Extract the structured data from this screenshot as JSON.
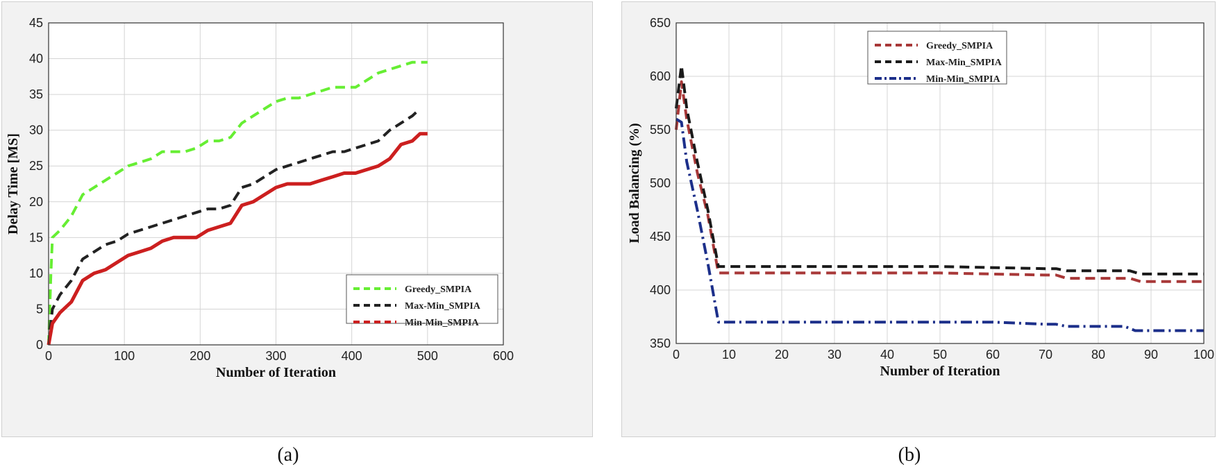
{
  "figure": {
    "captions": [
      "(a)",
      "(b)"
    ]
  },
  "chart_data": [
    {
      "type": "line",
      "title": "",
      "xlabel": "Number of Iteration",
      "ylabel": "Delay Time [MS]",
      "xlim": [
        0,
        600
      ],
      "ylim": [
        0,
        45
      ],
      "xticks": [
        0,
        100,
        200,
        300,
        400,
        500,
        600
      ],
      "yticks": [
        0,
        5,
        10,
        15,
        20,
        25,
        30,
        35,
        40,
        45
      ],
      "grid": true,
      "legend_position": "bottom-right",
      "series": [
        {
          "name": "Greedy_SMPIA",
          "color": "#66ee33",
          "style": "dashed",
          "x": [
            0,
            3,
            5,
            15,
            30,
            45,
            60,
            75,
            90,
            105,
            120,
            135,
            150,
            165,
            180,
            195,
            210,
            225,
            240,
            255,
            270,
            285,
            300,
            315,
            330,
            345,
            360,
            375,
            390,
            405,
            420,
            435,
            450,
            465,
            480,
            495,
            500
          ],
          "y": [
            0,
            10,
            15,
            16,
            18,
            21,
            22,
            23,
            24,
            25,
            25.5,
            26,
            27,
            27,
            27,
            27.5,
            28.5,
            28.5,
            29,
            31,
            32,
            33,
            34,
            34.5,
            34.5,
            35,
            35.5,
            36,
            36,
            36,
            37,
            38,
            38.5,
            39,
            39.5,
            39.5,
            39.5
          ]
        },
        {
          "name": "Max-Min_SMPIA",
          "color": "#222222",
          "style": "dashed",
          "x": [
            0,
            5,
            15,
            30,
            45,
            60,
            75,
            90,
            105,
            120,
            135,
            150,
            165,
            180,
            195,
            210,
            225,
            240,
            255,
            270,
            285,
            300,
            315,
            330,
            345,
            360,
            375,
            390,
            405,
            420,
            435,
            450,
            465,
            480,
            490
          ],
          "y": [
            0,
            5,
            7,
            9,
            12,
            13,
            14,
            14.5,
            15.5,
            16,
            16.5,
            17,
            17.5,
            18,
            18.5,
            19,
            19,
            19.5,
            22,
            22.5,
            23.5,
            24.5,
            25,
            25.5,
            26,
            26.5,
            27,
            27,
            27.5,
            28,
            28.5,
            30,
            31,
            32,
            33
          ]
        },
        {
          "name": "Min-Min_SMPIA",
          "color": "#cc1f1f",
          "style": "solid",
          "x": [
            0,
            5,
            15,
            30,
            45,
            60,
            75,
            90,
            105,
            120,
            135,
            150,
            165,
            180,
            195,
            210,
            225,
            240,
            255,
            270,
            285,
            300,
            315,
            330,
            345,
            360,
            375,
            390,
            405,
            420,
            435,
            450,
            465,
            480,
            490,
            500
          ],
          "y": [
            0,
            3,
            4.5,
            6,
            9,
            10,
            10.5,
            11.5,
            12.5,
            13,
            13.5,
            14.5,
            15,
            15,
            15,
            16,
            16.5,
            17,
            19.5,
            20,
            21,
            22,
            22.5,
            22.5,
            22.5,
            23,
            23.5,
            24,
            24,
            24.5,
            25,
            26,
            28,
            28.5,
            29.5,
            29.5
          ]
        }
      ]
    },
    {
      "type": "line",
      "title": "",
      "xlabel": "Number of Iteration",
      "ylabel": "Load Balancing (%)",
      "xlim": [
        0,
        100
      ],
      "ylim": [
        350,
        650
      ],
      "xticks": [
        0,
        10,
        20,
        30,
        40,
        50,
        60,
        70,
        80,
        90,
        100
      ],
      "yticks": [
        350,
        400,
        450,
        500,
        550,
        600,
        650
      ],
      "grid": true,
      "legend_position": "top-right",
      "series": [
        {
          "name": "Greedy_SMPIA",
          "color": "#a83838",
          "style": "dashed",
          "x": [
            0,
            1,
            2,
            4,
            6,
            8,
            10,
            30,
            50,
            70,
            72,
            74,
            80,
            86,
            88,
            100
          ],
          "y": [
            550,
            595,
            560,
            510,
            470,
            416,
            416,
            416,
            416,
            414,
            414,
            411,
            411,
            411,
            408,
            408
          ]
        },
        {
          "name": "Max-Min_SMPIA",
          "color": "#1a1a1a",
          "style": "dashed",
          "x": [
            0,
            1,
            2,
            4,
            6,
            8,
            10,
            30,
            50,
            70,
            72,
            74,
            80,
            86,
            88,
            100
          ],
          "y": [
            570,
            610,
            570,
            520,
            475,
            422,
            422,
            422,
            422,
            420,
            420,
            418,
            418,
            418,
            415,
            415
          ]
        },
        {
          "name": "Min-Min_SMPIA",
          "color": "#1c2f8a",
          "style": "dashdot",
          "x": [
            0,
            1,
            2,
            4,
            6,
            8,
            10,
            30,
            50,
            60,
            70,
            72,
            74,
            80,
            85,
            87,
            100
          ],
          "y": [
            560,
            557,
            520,
            475,
            425,
            370,
            370,
            370,
            370,
            370,
            368,
            368,
            366,
            366,
            366,
            362,
            362
          ]
        }
      ]
    }
  ]
}
